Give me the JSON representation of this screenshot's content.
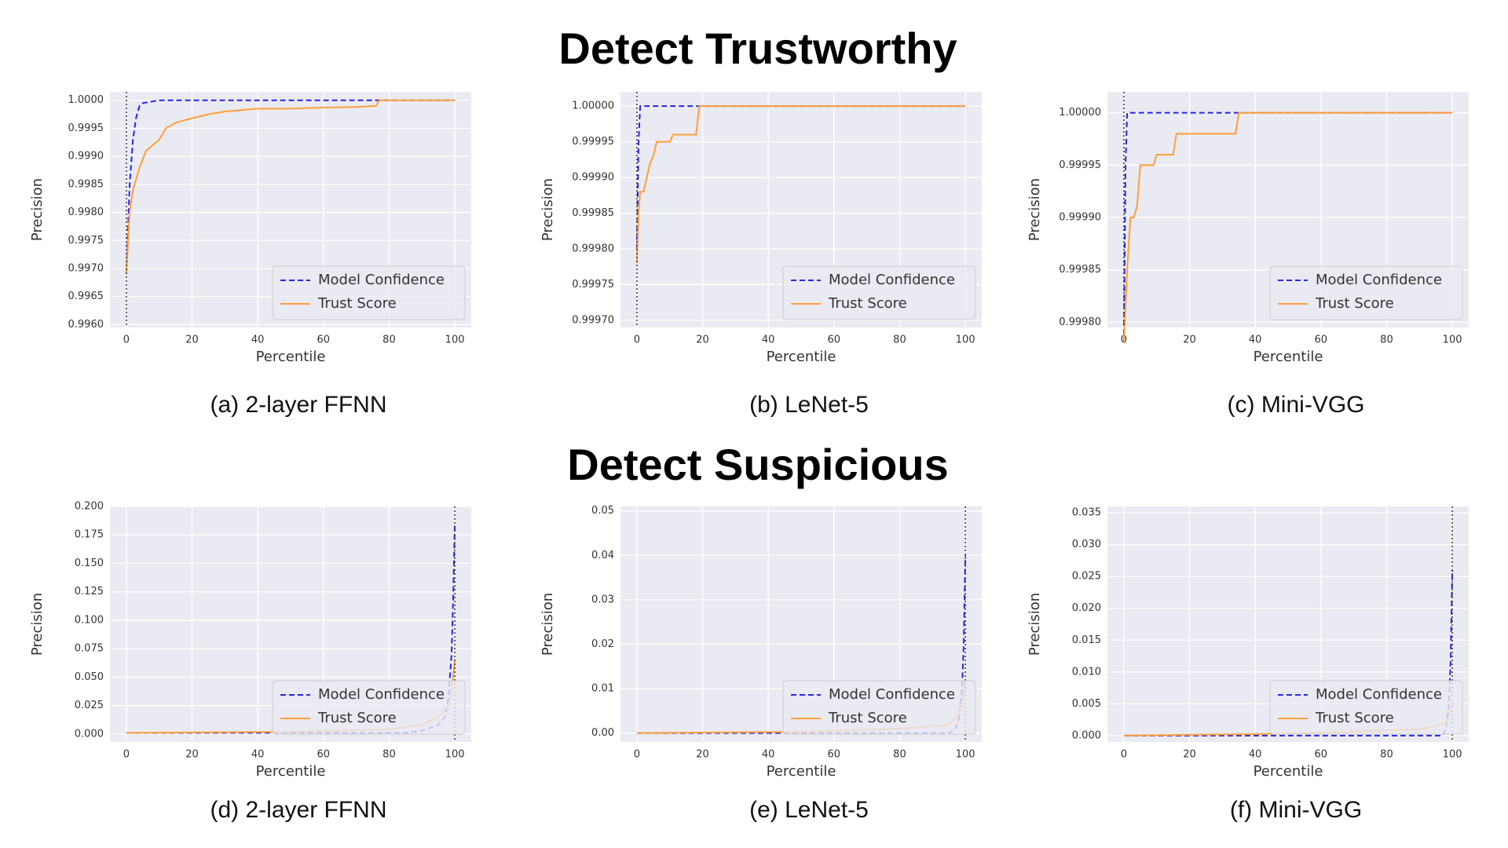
{
  "headings": [
    "Detect Trustworthy",
    "Detect Suspicious"
  ],
  "chart_data": [
    {
      "type": "line",
      "caption": "(a) 2-layer FFNN",
      "xlabel": "Percentile",
      "ylabel": "Precision",
      "xlim": [
        -5,
        105
      ],
      "xticks": [
        0,
        20,
        40,
        60,
        80,
        100
      ],
      "ylim": [
        0.99595,
        1.00015
      ],
      "yticks": [
        {
          "value": 0.996,
          "label": "0.9960"
        },
        0.9965,
        {
          "value": 0.997,
          "label": "0.9970"
        },
        0.9975,
        {
          "value": 0.998,
          "label": "0.9980"
        },
        0.9985,
        {
          "value": 0.999,
          "label": "0.9990"
        },
        0.9995,
        {
          "value": 1,
          "label": "1.0000"
        }
      ],
      "grid": true,
      "legend": "lower right",
      "vline": 0,
      "series": [
        {
          "name": "Model Confidence",
          "color": "#2525ee",
          "dash": true,
          "x": [
            0,
            1,
            2,
            3,
            4,
            5,
            8,
            10,
            20,
            100
          ],
          "values": [
            0.9969,
            0.9985,
            0.9993,
            0.9997,
            0.9999,
            0.99995,
            0.99998,
            1,
            1,
            1
          ]
        },
        {
          "name": "Trust Score",
          "color": "#ff9f3a",
          "dash": false,
          "x": [
            0,
            1,
            2,
            4,
            6,
            8,
            10,
            12,
            15,
            20,
            25,
            30,
            40,
            50,
            60,
            70,
            76,
            77,
            100
          ],
          "values": [
            0.9969,
            0.998,
            0.9984,
            0.9988,
            0.9991,
            0.9992,
            0.9993,
            0.9995,
            0.9996,
            0.99968,
            0.99975,
            0.9998,
            0.99985,
            0.99985,
            0.99987,
            0.99988,
            0.9999,
            1,
            1
          ]
        }
      ]
    },
    {
      "type": "line",
      "caption": "(b) LeNet-5",
      "xlabel": "Percentile",
      "ylabel": "Precision",
      "xlim": [
        -5,
        105
      ],
      "xticks": [
        0,
        20,
        40,
        60,
        80,
        100
      ],
      "ylim": [
        0.99969,
        1.00002
      ],
      "yticks": [
        {
          "value": 0.9997,
          "label": "0.99970"
        },
        0.99975,
        {
          "value": 0.9998,
          "label": "0.99980"
        },
        0.99985,
        {
          "value": 0.9999,
          "label": "0.99990"
        },
        0.99995,
        {
          "value": 1,
          "label": "1.00000"
        }
      ],
      "grid": true,
      "legend": "lower right",
      "vline": 0,
      "series": [
        {
          "name": "Model Confidence",
          "color": "#2525ee",
          "dash": true,
          "x": [
            0,
            0.5,
            1,
            100
          ],
          "values": [
            0.9998,
            0.99995,
            1,
            1
          ]
        },
        {
          "name": "Trust Score",
          "color": "#ff9f3a",
          "dash": false,
          "x": [
            0,
            0.5,
            1,
            2,
            3,
            4,
            5,
            6,
            7,
            10,
            11,
            18,
            19,
            100
          ],
          "values": [
            0.99978,
            0.99985,
            0.99988,
            0.99988,
            0.9999,
            0.99992,
            0.99993,
            0.99995,
            0.99995,
            0.99995,
            0.99996,
            0.99996,
            1,
            1
          ]
        }
      ]
    },
    {
      "type": "line",
      "caption": "(c) Mini-VGG",
      "xlabel": "Percentile",
      "ylabel": "Precision",
      "xlim": [
        -5,
        105
      ],
      "xticks": [
        0,
        20,
        40,
        60,
        80,
        100
      ],
      "ylim": [
        0.999795,
        1.00002
      ],
      "yticks": [
        {
          "value": 0.9998,
          "label": "0.99980"
        },
        0.99985,
        {
          "value": 0.9999,
          "label": "0.99990"
        },
        0.99995,
        {
          "value": 1,
          "label": "1.00000"
        }
      ],
      "grid": true,
      "legend": "lower right",
      "vline": 0,
      "series": [
        {
          "name": "Model Confidence",
          "color": "#2525ee",
          "dash": true,
          "x": [
            0,
            0.5,
            1,
            100
          ],
          "values": [
            0.99978,
            0.99995,
            1,
            1
          ]
        },
        {
          "name": "Trust Score",
          "color": "#ff9f3a",
          "dash": false,
          "x": [
            0,
            1,
            2,
            3,
            4,
            5,
            6,
            9,
            10,
            15,
            16,
            34,
            35,
            100
          ],
          "values": [
            0.99978,
            0.99985,
            0.9999,
            0.9999,
            0.99991,
            0.99995,
            0.99995,
            0.99995,
            0.99996,
            0.99996,
            0.99998,
            0.99998,
            1,
            1
          ]
        }
      ]
    },
    {
      "type": "line",
      "caption": "(d) 2-layer FFNN",
      "xlabel": "Percentile",
      "ylabel": "Precision",
      "xlim": [
        -5,
        105
      ],
      "xticks": [
        0,
        20,
        40,
        60,
        80,
        100
      ],
      "ylim": [
        -0.007,
        0.2
      ],
      "yticks": [
        {
          "value": 0,
          "label": "0.000"
        },
        0.025,
        {
          "value": 0.05,
          "label": "0.050"
        },
        0.075,
        {
          "value": 0.1,
          "label": "0.100"
        },
        0.125,
        {
          "value": 0.15,
          "label": "0.150"
        },
        0.175,
        {
          "value": 0.2,
          "label": "0.200"
        }
      ],
      "grid": true,
      "legend": "lower right",
      "vline": 100,
      "series": [
        {
          "name": "Model Confidence",
          "color": "#2525ee",
          "dash": true,
          "x": [
            0,
            85,
            90,
            95,
            97,
            98,
            99,
            99.5,
            100
          ],
          "values": [
            0.001,
            0.001,
            0.003,
            0.008,
            0.015,
            0.03,
            0.07,
            0.12,
            0.185
          ]
        },
        {
          "name": "Trust Score",
          "color": "#ff9f3a",
          "dash": false,
          "x": [
            0,
            50,
            80,
            90,
            95,
            98,
            99,
            100
          ],
          "values": [
            0.001,
            0.002,
            0.004,
            0.008,
            0.015,
            0.025,
            0.035,
            0.065
          ]
        }
      ]
    },
    {
      "type": "line",
      "caption": "(e) LeNet-5",
      "xlabel": "Percentile",
      "ylabel": "Precision",
      "xlim": [
        -5,
        105
      ],
      "xticks": [
        0,
        20,
        40,
        60,
        80,
        100
      ],
      "ylim": [
        -0.002,
        0.051
      ],
      "yticks": [
        {
          "value": 0,
          "label": "0.00"
        },
        0.01,
        0.02,
        0.03,
        0.04,
        0.05
      ],
      "grid": true,
      "legend": "lower right",
      "vline": 100,
      "series": [
        {
          "name": "Model Confidence",
          "color": "#2525ee",
          "dash": true,
          "x": [
            0,
            95,
            97,
            98,
            99,
            99.5,
            100
          ],
          "values": [
            0,
            0,
            0.001,
            0.003,
            0.01,
            0.02,
            0.04
          ]
        },
        {
          "name": "Trust Score",
          "color": "#ff9f3a",
          "dash": false,
          "x": [
            0,
            50,
            80,
            90,
            95,
            98,
            99,
            100
          ],
          "values": [
            0,
            0.0003,
            0.001,
            0.0015,
            0.002,
            0.004,
            0.007,
            0.012
          ]
        }
      ]
    },
    {
      "type": "line",
      "caption": "(f) Mini-VGG",
      "xlabel": "Percentile",
      "ylabel": "Precision",
      "xlim": [
        -5,
        105
      ],
      "xticks": [
        0,
        20,
        40,
        60,
        80,
        100
      ],
      "ylim": [
        -0.001,
        0.036
      ],
      "yticks": [
        {
          "value": 0,
          "label": "0.000"
        },
        0.005,
        {
          "value": 0.01,
          "label": "0.010"
        },
        0.015,
        {
          "value": 0.02,
          "label": "0.020"
        },
        0.025,
        {
          "value": 0.03,
          "label": "0.030"
        },
        0.035
      ],
      "grid": true,
      "legend": "lower right",
      "vline": 100,
      "series": [
        {
          "name": "Model Confidence",
          "color": "#2525ee",
          "dash": true,
          "x": [
            0,
            97,
            98,
            99,
            99.5,
            100
          ],
          "values": [
            0,
            0,
            0.001,
            0.005,
            0.012,
            0.026
          ]
        },
        {
          "name": "Trust Score",
          "color": "#ff9f3a",
          "dash": false,
          "x": [
            0,
            50,
            80,
            90,
            95,
            98,
            99,
            100
          ],
          "values": [
            0,
            0.0003,
            0.0008,
            0.001,
            0.0015,
            0.002,
            0.003,
            0.005
          ]
        }
      ]
    }
  ]
}
